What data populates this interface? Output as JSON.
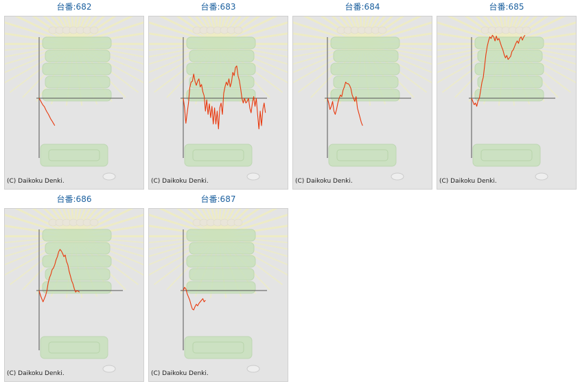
{
  "colors": {
    "title": "#1a5f9e",
    "line": "#e8380d",
    "axis": "#555555",
    "panel_bg": "#e4e4e4",
    "illustration": "#b9dfa6",
    "rays": "#f4f1b0"
  },
  "copyright": "(C) Daikoku Denki.",
  "chart_data": [
    {
      "type": "line",
      "title": "台番:682",
      "series": [
        {
          "values": [
            0,
            -140,
            -300,
            -430,
            -520,
            -700,
            -850,
            -980,
            -1140,
            -1300,
            -1420,
            -1560,
            -1700
          ]
        }
      ]
    },
    {
      "type": "line",
      "title": "台番:683",
      "series": [
        {
          "values": [
            0,
            -600,
            -1550,
            -900,
            -300,
            650,
            1000,
            1050,
            1500,
            1050,
            800,
            1050,
            1200,
            700,
            850,
            400,
            150,
            -800,
            -100,
            -1000,
            -350,
            -1200,
            -500,
            -1600,
            -600,
            -1600,
            -800,
            -1900,
            -600,
            -300,
            -1000,
            300,
            700,
            1000,
            800,
            1200,
            700,
            1000,
            1600,
            1400,
            1900,
            2000,
            1400,
            1100,
            600,
            0,
            -300,
            0,
            -300,
            -200,
            0,
            -600,
            -900,
            -300,
            100,
            -500,
            0,
            -1000,
            -1900,
            -800,
            -1700,
            -700,
            -300,
            -900
          ]
        }
      ]
    },
    {
      "type": "line",
      "title": "台番:684",
      "series": [
        {
          "values": [
            0,
            -300,
            -700,
            -500,
            -200,
            -800,
            -1000,
            -700,
            -300,
            0,
            200,
            100,
            500,
            700,
            1000,
            900,
            900,
            800,
            600,
            200,
            0,
            -200,
            100,
            -600,
            -900,
            -1200,
            -1500,
            -1700
          ]
        }
      ]
    },
    {
      "type": "line",
      "title": "台番:685",
      "series": [
        {
          "values": [
            0,
            -200,
            -400,
            -300,
            -500,
            -150,
            0,
            500,
            1000,
            1300,
            2000,
            2700,
            3200,
            3550,
            3800,
            3700,
            3900,
            3800,
            3550,
            3850,
            3600,
            3700,
            3450,
            3200,
            3000,
            2700,
            2500,
            2650,
            2400,
            2500,
            2600,
            2900,
            3000,
            3200,
            3400,
            3550,
            3400,
            3700,
            3800,
            3600,
            3800,
            3900
          ]
        }
      ]
    },
    {
      "type": "line",
      "title": "台番:686",
      "series": [
        {
          "values": [
            0,
            -300,
            -500,
            -700,
            -500,
            -300,
            0,
            500,
            800,
            1000,
            1300,
            1400,
            1600,
            1900,
            2100,
            2400,
            2550,
            2450,
            2300,
            2100,
            2200,
            1800,
            1600,
            1200,
            900,
            600,
            400,
            100,
            -100,
            0,
            -50,
            -100
          ]
        }
      ]
    },
    {
      "type": "line",
      "title": "台番:687",
      "series": [
        {
          "values": [
            0,
            200,
            100,
            -200,
            -400,
            -600,
            -900,
            -1150,
            -1200,
            -1000,
            -850,
            -950,
            -800,
            -700,
            -600,
            -500,
            -700,
            -600
          ]
        }
      ]
    }
  ]
}
